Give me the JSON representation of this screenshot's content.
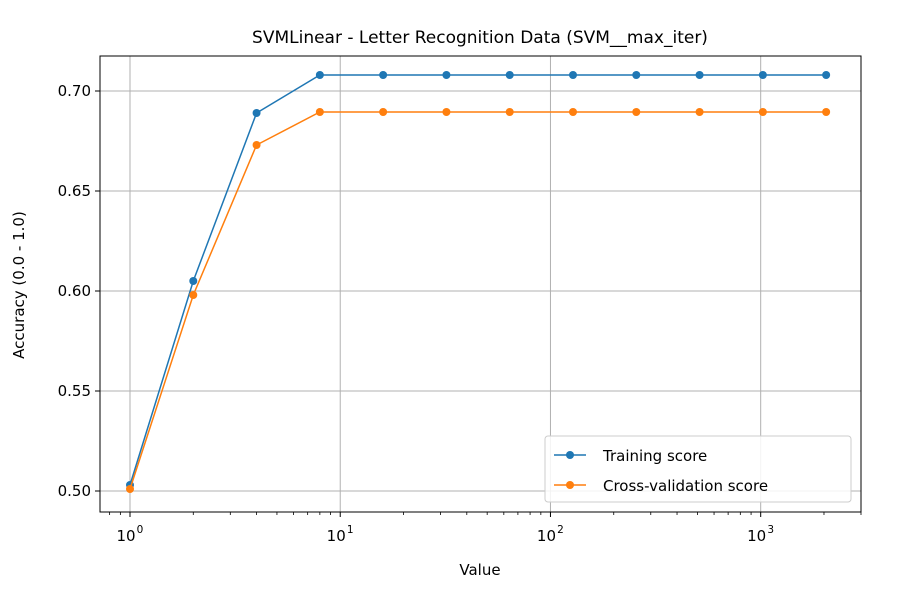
{
  "chart_data": {
    "type": "line",
    "title": "SVMLinear - Letter Recognition Data (SVM__max_iter)",
    "xlabel": "Value",
    "ylabel": "Accuracy (0.0 - 1.0)",
    "x_scale": "log",
    "xlim": [
      0.72,
      3000
    ],
    "ylim": [
      0.4895,
      0.7175
    ],
    "grid": true,
    "legend_position": "lower-right",
    "x": [
      1,
      2,
      4,
      8,
      16,
      32,
      64,
      128,
      256,
      512,
      1024,
      2048
    ],
    "x_major_ticks": [
      {
        "value": 1,
        "base": "10",
        "exp": "0"
      },
      {
        "value": 10,
        "base": "10",
        "exp": "1"
      },
      {
        "value": 100,
        "base": "10",
        "exp": "2"
      },
      {
        "value": 1000,
        "base": "10",
        "exp": "3"
      }
    ],
    "y_ticks": [
      {
        "value": 0.5,
        "label": "0.50"
      },
      {
        "value": 0.55,
        "label": "0.55"
      },
      {
        "value": 0.6,
        "label": "0.60"
      },
      {
        "value": 0.65,
        "label": "0.65"
      },
      {
        "value": 0.7,
        "label": "0.70"
      }
    ],
    "series": [
      {
        "name": "Training score",
        "color": "#1f77b4",
        "values": [
          0.503,
          0.605,
          0.689,
          0.708,
          0.708,
          0.708,
          0.708,
          0.708,
          0.708,
          0.708,
          0.708,
          0.708
        ]
      },
      {
        "name": "Cross-validation score",
        "color": "#ff7f0e",
        "values": [
          0.501,
          0.598,
          0.673,
          0.6895,
          0.6895,
          0.6895,
          0.6895,
          0.6895,
          0.6895,
          0.6895,
          0.6895,
          0.6895
        ]
      }
    ]
  }
}
